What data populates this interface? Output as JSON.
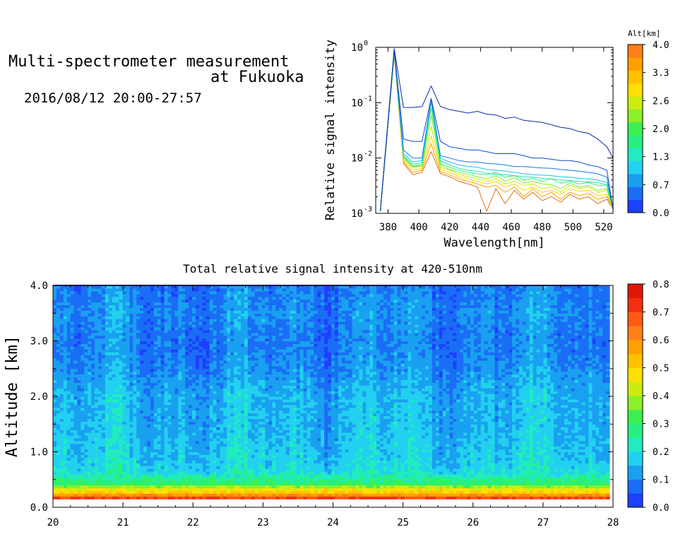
{
  "header": {
    "title_line1": "Multi-spectrometer measurement",
    "title_line2": "at Fukuoka",
    "period": "2016/08/12 20:00-27:57"
  },
  "chart_data": [
    {
      "type": "line",
      "xlabel": "Wavelength[nm]",
      "ylabel": "Relative signal intensity",
      "xlim": [
        372,
        526
      ],
      "ylim": [
        0.001,
        1
      ],
      "yscale": "log",
      "x_ticks": [
        380,
        400,
        420,
        440,
        460,
        480,
        500,
        520
      ],
      "y_ticks": [
        {
          "value": 1,
          "mant": "10",
          "exp": "0"
        },
        {
          "value": 0.1,
          "mant": "10",
          "exp": "-1"
        },
        {
          "value": 0.01,
          "mant": "10",
          "exp": "-2"
        },
        {
          "value": 0.001,
          "mant": "10",
          "exp": "-3"
        }
      ],
      "x": [
        375,
        384,
        390,
        396,
        402,
        408,
        414,
        420,
        426,
        432,
        438,
        444,
        450,
        456,
        462,
        468,
        474,
        480,
        486,
        492,
        498,
        504,
        510,
        516,
        522,
        526
      ],
      "colorbar": {
        "label": "Alt[km]",
        "range": [
          0.0,
          4.0
        ],
        "tick_labels": [
          "0.0",
          "0.7",
          "1.3",
          "2.0",
          "2.6",
          "3.3",
          "4.0"
        ],
        "colors": [
          "#1e40ff",
          "#1a6ef5",
          "#1aa0f0",
          "#22d0f0",
          "#20ecc0",
          "#28f080",
          "#3cf050",
          "#8cf028",
          "#ccec10",
          "#ffe000",
          "#ffc000",
          "#ffa000",
          "#ff8018"
        ]
      },
      "series": [
        {
          "color": "#0a2aa8",
          "values": [
            0.0011,
            0.95,
            0.082,
            0.082,
            0.085,
            0.2,
            0.085,
            0.075,
            0.07,
            0.065,
            0.07,
            0.062,
            0.06,
            0.052,
            0.055,
            0.048,
            0.046,
            0.044,
            0.04,
            0.036,
            0.034,
            0.03,
            0.028,
            0.022,
            0.016,
            0.01
          ]
        },
        {
          "color": "#1048d0",
          "values": [
            0.0011,
            0.9,
            0.022,
            0.02,
            0.02,
            0.12,
            0.02,
            0.016,
            0.015,
            0.014,
            0.014,
            0.013,
            0.012,
            0.012,
            0.012,
            0.011,
            0.01,
            0.01,
            0.0095,
            0.009,
            0.009,
            0.0085,
            0.0075,
            0.007,
            0.006,
            0.0012
          ]
        },
        {
          "color": "#1a78e8",
          "values": [
            0.0011,
            0.88,
            0.014,
            0.01,
            0.01,
            0.115,
            0.011,
            0.01,
            0.009,
            0.0085,
            0.0085,
            0.008,
            0.0078,
            0.0075,
            0.007,
            0.007,
            0.0068,
            0.0066,
            0.0065,
            0.0062,
            0.006,
            0.0058,
            0.0055,
            0.0052,
            0.0045,
            0.0012
          ]
        },
        {
          "color": "#20c0f0",
          "values": [
            0.0011,
            0.85,
            0.012,
            0.0085,
            0.009,
            0.11,
            0.01,
            0.0085,
            0.0075,
            0.007,
            0.0068,
            0.0062,
            0.006,
            0.0058,
            0.0055,
            0.0052,
            0.005,
            0.0049,
            0.0048,
            0.0046,
            0.0045,
            0.0043,
            0.0042,
            0.004,
            0.0036,
            0.0012
          ]
        },
        {
          "color": "#20e0b0",
          "values": [
            0.0011,
            0.82,
            0.011,
            0.0078,
            0.0082,
            0.1,
            0.0088,
            0.0075,
            0.0065,
            0.006,
            0.0058,
            0.0053,
            0.0051,
            0.005,
            0.0048,
            0.0046,
            0.0045,
            0.0043,
            0.0042,
            0.004,
            0.0039,
            0.0038,
            0.0037,
            0.0036,
            0.0033,
            0.0012
          ]
        },
        {
          "color": "#30f070",
          "values": [
            0.0011,
            0.8,
            0.0105,
            0.0072,
            0.0076,
            0.08,
            0.008,
            0.0068,
            0.006,
            0.0055,
            0.0052,
            0.005,
            0.0055,
            0.0045,
            0.0048,
            0.004,
            0.0043,
            0.0038,
            0.0042,
            0.0035,
            0.0038,
            0.0034,
            0.0036,
            0.0032,
            0.0032,
            0.0012
          ]
        },
        {
          "color": "#80f028",
          "values": [
            0.0011,
            0.78,
            0.01,
            0.007,
            0.0072,
            0.06,
            0.0075,
            0.0062,
            0.0055,
            0.005,
            0.0046,
            0.0042,
            0.0048,
            0.0038,
            0.0044,
            0.0035,
            0.0038,
            0.0034,
            0.0033,
            0.0028,
            0.0035,
            0.003,
            0.0032,
            0.0026,
            0.0028,
            0.0012
          ]
        },
        {
          "color": "#c8e810",
          "values": [
            0.0011,
            0.76,
            0.0095,
            0.0068,
            0.007,
            0.037,
            0.0068,
            0.006,
            0.005,
            0.0046,
            0.0042,
            0.0038,
            0.0042,
            0.0034,
            0.0038,
            0.0032,
            0.0034,
            0.0028,
            0.003,
            0.0024,
            0.0032,
            0.0028,
            0.003,
            0.0024,
            0.0026,
            0.0012
          ]
        },
        {
          "color": "#ffd000",
          "values": [
            0.0011,
            0.74,
            0.009,
            0.0062,
            0.0064,
            0.025,
            0.0062,
            0.0055,
            0.0046,
            0.0042,
            0.0038,
            0.0034,
            0.0038,
            0.003,
            0.0034,
            0.0026,
            0.003,
            0.0024,
            0.0026,
            0.0022,
            0.0028,
            0.0025,
            0.0026,
            0.0021,
            0.0022,
            0.0012
          ]
        },
        {
          "color": "#ffa000",
          "values": [
            0.0011,
            0.72,
            0.0085,
            0.0055,
            0.006,
            0.018,
            0.0056,
            0.005,
            0.0042,
            0.0038,
            0.0034,
            0.003,
            0.0032,
            0.0024,
            0.003,
            0.002,
            0.0028,
            0.002,
            0.0024,
            0.0018,
            0.0024,
            0.0021,
            0.0023,
            0.0018,
            0.002,
            0.0012
          ]
        },
        {
          "color": "#e07010",
          "values": [
            0.0011,
            0.7,
            0.008,
            0.005,
            0.0055,
            0.013,
            0.0052,
            0.0046,
            0.0038,
            0.0034,
            0.003,
            0.0011,
            0.0028,
            0.0015,
            0.0026,
            0.0018,
            0.0024,
            0.0017,
            0.002,
            0.0016,
            0.0022,
            0.0018,
            0.002,
            0.0015,
            0.0018,
            0.0012
          ]
        }
      ]
    },
    {
      "type": "heatmap",
      "title": "Total relative signal intensity at 420-510nm",
      "ylabel": "Altitude [km]",
      "xlim": [
        20,
        28
      ],
      "ylim": [
        0.0,
        4.0
      ],
      "x_ticks": [
        "20",
        "21",
        "22",
        "23",
        "24",
        "25",
        "26",
        "27",
        "28"
      ],
      "y_ticks": [
        "0.0",
        "1.0",
        "2.0",
        "3.0",
        "4.0"
      ],
      "data_x_end": 27.95,
      "profile": [
        {
          "alt": 0.0,
          "value": null
        },
        {
          "alt": 0.15,
          "value": 0.75
        },
        {
          "alt": 0.22,
          "value": 0.6
        },
        {
          "alt": 0.28,
          "value": 0.5
        },
        {
          "alt": 0.34,
          "value": 0.45
        },
        {
          "alt": 0.42,
          "value": 0.3
        },
        {
          "alt": 0.5,
          "value": 0.27
        },
        {
          "alt": 0.6,
          "value": 0.21
        },
        {
          "alt": 0.8,
          "value": 0.18
        },
        {
          "alt": 1.0,
          "value": 0.17
        },
        {
          "alt": 1.5,
          "value": 0.15
        },
        {
          "alt": 2.0,
          "value": 0.15
        },
        {
          "alt": 2.5,
          "value": 0.11
        },
        {
          "alt": 3.0,
          "value": 0.09
        },
        {
          "alt": 3.5,
          "value": 0.11
        },
        {
          "alt": 4.0,
          "value": 0.09
        }
      ],
      "colorbar": {
        "range": [
          0.0,
          0.8
        ],
        "tick_labels": [
          "0.0",
          "0.1",
          "0.2",
          "0.3",
          "0.4",
          "0.5",
          "0.6",
          "0.7",
          "0.8"
        ],
        "colors": [
          "#1e40ff",
          "#1a6ef5",
          "#1aa0f0",
          "#22d0f0",
          "#20ecc0",
          "#28f080",
          "#3cf050",
          "#8cf028",
          "#ccec10",
          "#ffe000",
          "#ffc000",
          "#ffa000",
          "#ff8018",
          "#ff5a14",
          "#f03010",
          "#e01808"
        ]
      }
    }
  ]
}
